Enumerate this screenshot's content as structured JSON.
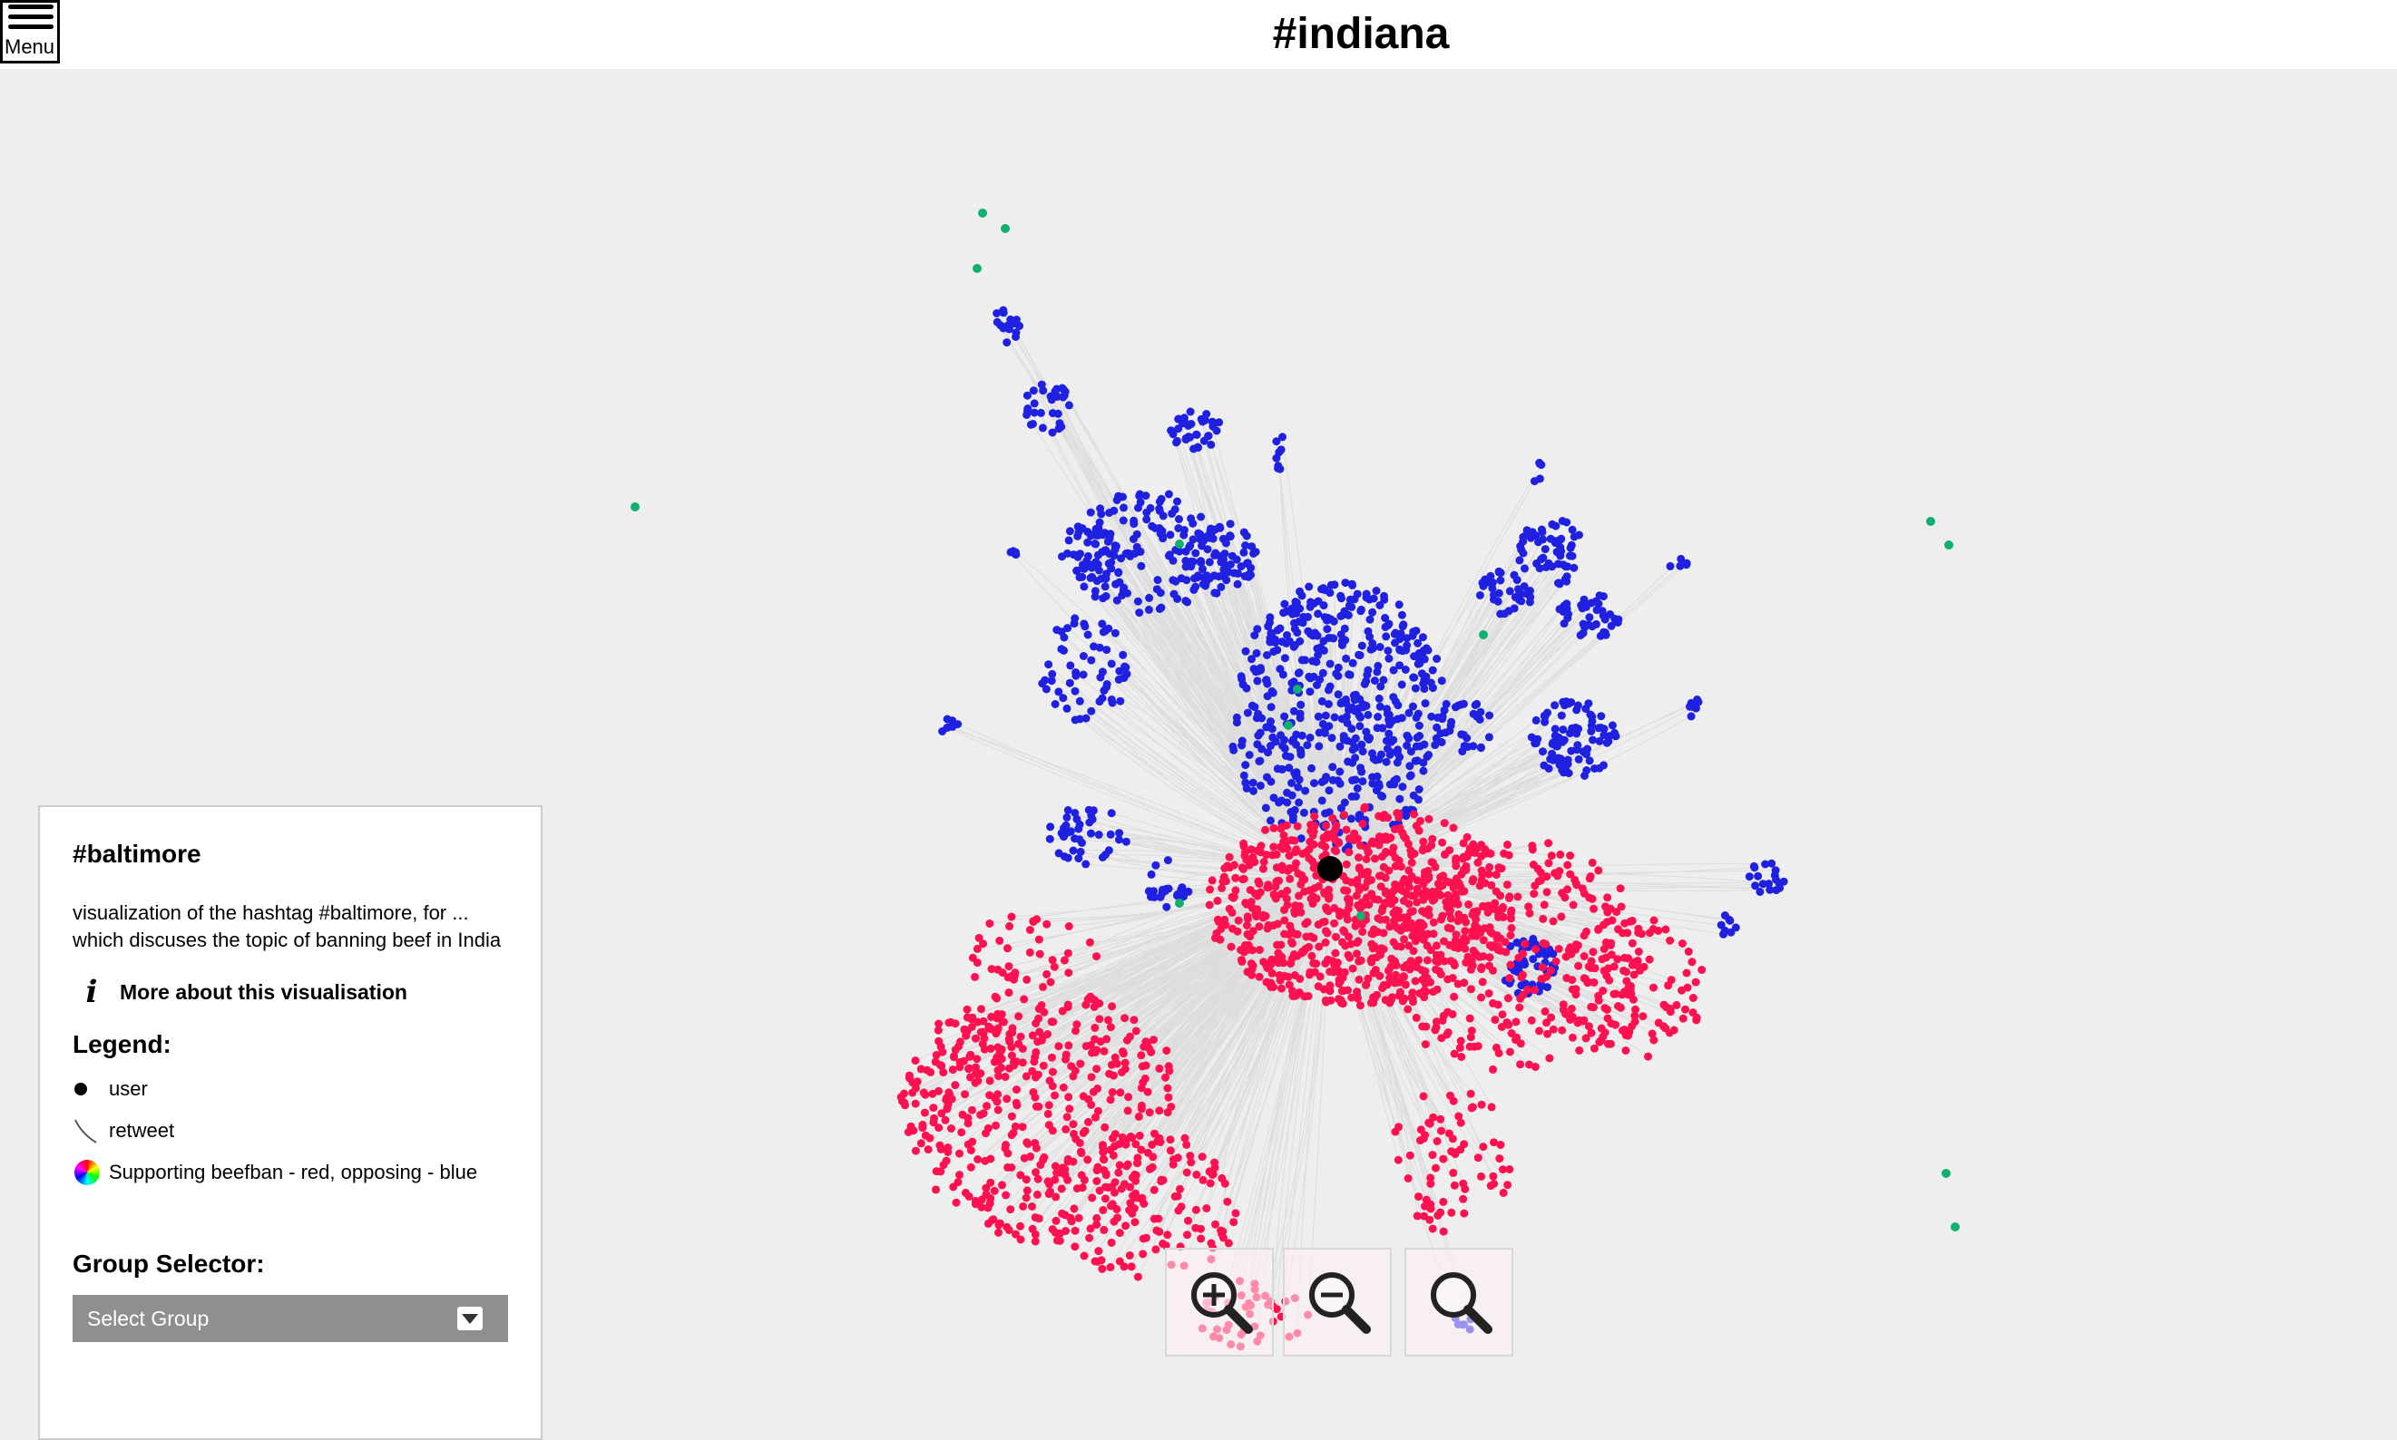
{
  "header": {
    "menu_label": "Menu",
    "title": "#indiana"
  },
  "panel": {
    "title": "#baltimore",
    "description": "visualization of the hashtag #baltimore, for ... which discuses the topic of banning beef in India",
    "more_link": "More about this visualisation",
    "legend_title": "Legend:",
    "legend": [
      {
        "symbol": "black-dot",
        "label": "user"
      },
      {
        "symbol": "curved-line",
        "label": "retweet"
      },
      {
        "symbol": "color-wheel",
        "label": "Supporting beefban - red, opposing - blue"
      }
    ],
    "group_selector_title": "Group Selector:",
    "group_select_value": "Select Group"
  },
  "zoom_controls": [
    "zoom-in-icon",
    "zoom-out-icon",
    "zoom-reset-icon"
  ],
  "colors": {
    "supporting": "#ff1150",
    "opposing": "#2020e0",
    "neutral": "#10b070",
    "user": "#000000",
    "edge": "#bdbdbd"
  }
}
